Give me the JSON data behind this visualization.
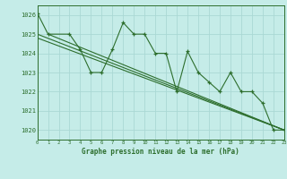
{
  "title": "Graphe pression niveau de la mer (hPa)",
  "background_color": "#c5ece8",
  "grid_color": "#aad8d4",
  "line_color": "#2d6e2d",
  "x_min": 0,
  "x_max": 23,
  "y_min": 1019.5,
  "y_max": 1026.5,
  "yticks": [
    1020,
    1021,
    1022,
    1023,
    1024,
    1025,
    1026
  ],
  "xticks": [
    0,
    1,
    2,
    3,
    4,
    5,
    6,
    7,
    8,
    9,
    10,
    11,
    12,
    13,
    14,
    15,
    16,
    17,
    18,
    19,
    20,
    21,
    22,
    23
  ],
  "series_zigzag": {
    "x": [
      0,
      1,
      3,
      4,
      5,
      6,
      7,
      8,
      9,
      10,
      11,
      12,
      13,
      14,
      15,
      16,
      17,
      18,
      19,
      20,
      21,
      22,
      23
    ],
    "y": [
      1026.1,
      1025.0,
      1025.0,
      1024.2,
      1023.0,
      1023.0,
      1024.2,
      1025.6,
      1025.0,
      1025.0,
      1024.0,
      1024.0,
      1022.0,
      1024.1,
      1023.0,
      1022.5,
      1022.0,
      1023.0,
      1022.0,
      1022.0,
      1021.4,
      1020.0,
      1020.0
    ]
  },
  "series_diag1": {
    "x": [
      0,
      23
    ],
    "y": [
      1025.0,
      1020.0
    ]
  },
  "series_diag2": {
    "x": [
      0,
      23
    ],
    "y": [
      1024.8,
      1020.0
    ]
  },
  "series_diag3": {
    "x": [
      1,
      23
    ],
    "y": [
      1025.0,
      1020.0
    ]
  }
}
